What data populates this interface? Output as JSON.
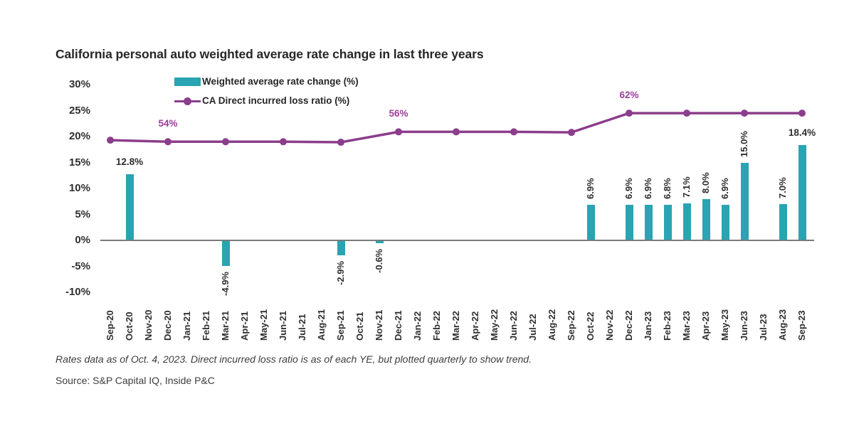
{
  "header": {
    "title": "California personal auto weighted average rate change in last three years"
  },
  "legend": {
    "bar_label": "Weighted average rate change (%)",
    "line_label": "CA Direct incurred loss ratio (%)"
  },
  "colors": {
    "bar_teal": "#29a4b2",
    "line_purple": "#8c3d8c",
    "line_label_purple": "#9b3e9b",
    "axis_gray": "#7a7a7a",
    "text_dark": "#2e2e2e"
  },
  "chart_data": {
    "type": "bar+line combo",
    "title": "California personal auto weighted average rate change in last three years",
    "xlabel": "",
    "ylabel": "",
    "grid": "off",
    "legend_position": "top-left inside plot",
    "categories": [
      "Sep-20",
      "Oct-20",
      "Nov-20",
      "Dec-20",
      "Jan-21",
      "Feb-21",
      "Mar-21",
      "Apr-21",
      "May-21",
      "Jun-21",
      "Jul-21",
      "Aug-21",
      "Sep-21",
      "Oct-21",
      "Nov-21",
      "Dec-21",
      "Jan-22",
      "Feb-22",
      "Mar-22",
      "Apr-22",
      "May-22",
      "Jun-22",
      "Jul-22",
      "Aug-22",
      "Sep-22",
      "Oct-22",
      "Nov-22",
      "Dec-22",
      "Jan-23",
      "Feb-23",
      "Mar-23",
      "Apr-23",
      "May-23",
      "Jun-23",
      "Jul-23",
      "Aug-23",
      "Sep-23"
    ],
    "y_axis": {
      "tick_labels": [
        "30%",
        "25%",
        "20%",
        "15%",
        "10%",
        "5%",
        "0%",
        "-5%",
        "-10%"
      ],
      "min": -10,
      "max": 30,
      "unit": "%"
    },
    "bar_series": {
      "name": "Weighted average rate change (%)",
      "color": "#29a4b2",
      "points": [
        {
          "month": "Oct-20",
          "value": 12.8,
          "label": "12.8%",
          "label_rotated": false
        },
        {
          "month": "Mar-21",
          "value": -4.9,
          "label": "-4.9%",
          "label_rotated": true
        },
        {
          "month": "Sep-21",
          "value": -2.9,
          "label": "-2.9%",
          "label_rotated": true
        },
        {
          "month": "Nov-21",
          "value": -0.6,
          "label": "-0.6%",
          "label_rotated": true
        },
        {
          "month": "Oct-22",
          "value": 6.9,
          "label": "6.9%",
          "label_rotated": true
        },
        {
          "month": "Dec-22",
          "value": 6.9,
          "label": "6.9%",
          "label_rotated": true
        },
        {
          "month": "Jan-23",
          "value": 6.9,
          "label": "6.9%",
          "label_rotated": true
        },
        {
          "month": "Feb-23",
          "value": 6.8,
          "label": "6.8%",
          "label_rotated": true
        },
        {
          "month": "Mar-23",
          "value": 7.1,
          "label": "7.1%",
          "label_rotated": true
        },
        {
          "month": "Apr-23",
          "value": 8.0,
          "label": "8.0%",
          "label_rotated": true
        },
        {
          "month": "May-23",
          "value": 6.9,
          "label": "6.9%",
          "label_rotated": true
        },
        {
          "month": "Jun-23",
          "value": 15.0,
          "label": "15.0%",
          "label_rotated": true
        },
        {
          "month": "Aug-23",
          "value": 7.0,
          "label": "7.0%",
          "label_rotated": true
        },
        {
          "month": "Sep-23",
          "value": 18.4,
          "label": "18.4%",
          "label_rotated": false
        }
      ]
    },
    "line_series": {
      "name": "CA Direct incurred loss ratio (%)",
      "color": "#8c3d8c",
      "label_color": "#9b3e9b",
      "note_as_shown": "loss ratio labeled at each year-end, plotted quarterly on the left percent axis",
      "points": [
        {
          "month": "Sep-20",
          "plotted_pct": 19.3
        },
        {
          "month": "Dec-20",
          "plotted_pct": 19.0,
          "label": "54%"
        },
        {
          "month": "Mar-21",
          "plotted_pct": 19.0
        },
        {
          "month": "Jun-21",
          "plotted_pct": 19.0
        },
        {
          "month": "Sep-21",
          "plotted_pct": 18.9
        },
        {
          "month": "Dec-21",
          "plotted_pct": 20.9,
          "label": "56%"
        },
        {
          "month": "Mar-22",
          "plotted_pct": 20.9
        },
        {
          "month": "Jun-22",
          "plotted_pct": 20.9
        },
        {
          "month": "Sep-22",
          "plotted_pct": 20.8
        },
        {
          "month": "Dec-22",
          "plotted_pct": 24.5,
          "label": "62%"
        },
        {
          "month": "Mar-23",
          "plotted_pct": 24.5
        },
        {
          "month": "Jun-23",
          "plotted_pct": 24.5
        },
        {
          "month": "Sep-23",
          "plotted_pct": 24.5
        }
      ],
      "year_end_loss_ratios": {
        "2020": "54%",
        "2021": "56%",
        "2022": "62%"
      }
    }
  },
  "footnote": "Rates data as of Oct. 4, 2023. Direct incurred loss ratio is as of each YE, but plotted quarterly to show trend.",
  "source": "Source: S&P Capital IQ, Inside P&C"
}
